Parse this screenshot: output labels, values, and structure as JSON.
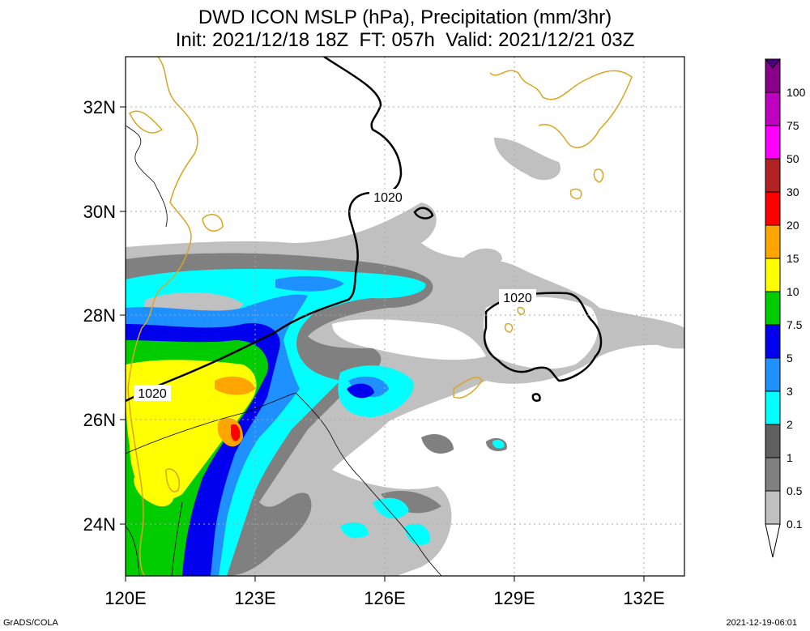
{
  "title": {
    "line1": "DWD ICON MSLP (hPa), Precipitation (mm/3hr)",
    "line2": "Init: 2021/12/18 18Z  FT: 057h  Valid: 2021/12/21 03Z"
  },
  "axes": {
    "lon_labels": [
      "120E",
      "123E",
      "126E",
      "129E",
      "132E"
    ],
    "lat_labels": [
      "32N",
      "30N",
      "28N",
      "26N",
      "24N"
    ]
  },
  "isobar_labels": [
    "1020",
    "1020",
    "1020"
  ],
  "colorbar": {
    "labels": [
      "0.1",
      "0.5",
      "1",
      "2",
      "3",
      "5",
      "7.5",
      "10",
      "15",
      "20",
      "30",
      "50",
      "75",
      "100"
    ],
    "colors": [
      "#c0c0c0",
      "#808080",
      "#606060",
      "#00ffff",
      "#1e90ff",
      "#0000ee",
      "#00cc00",
      "#ffff00",
      "#ffa500",
      "#ff0000",
      "#b22222",
      "#ff00ff",
      "#c000c0",
      "#8b008b",
      "#4b0082"
    ]
  },
  "footer": {
    "left": "GrADS/COLA",
    "right": "2021-12-19-06:01"
  }
}
